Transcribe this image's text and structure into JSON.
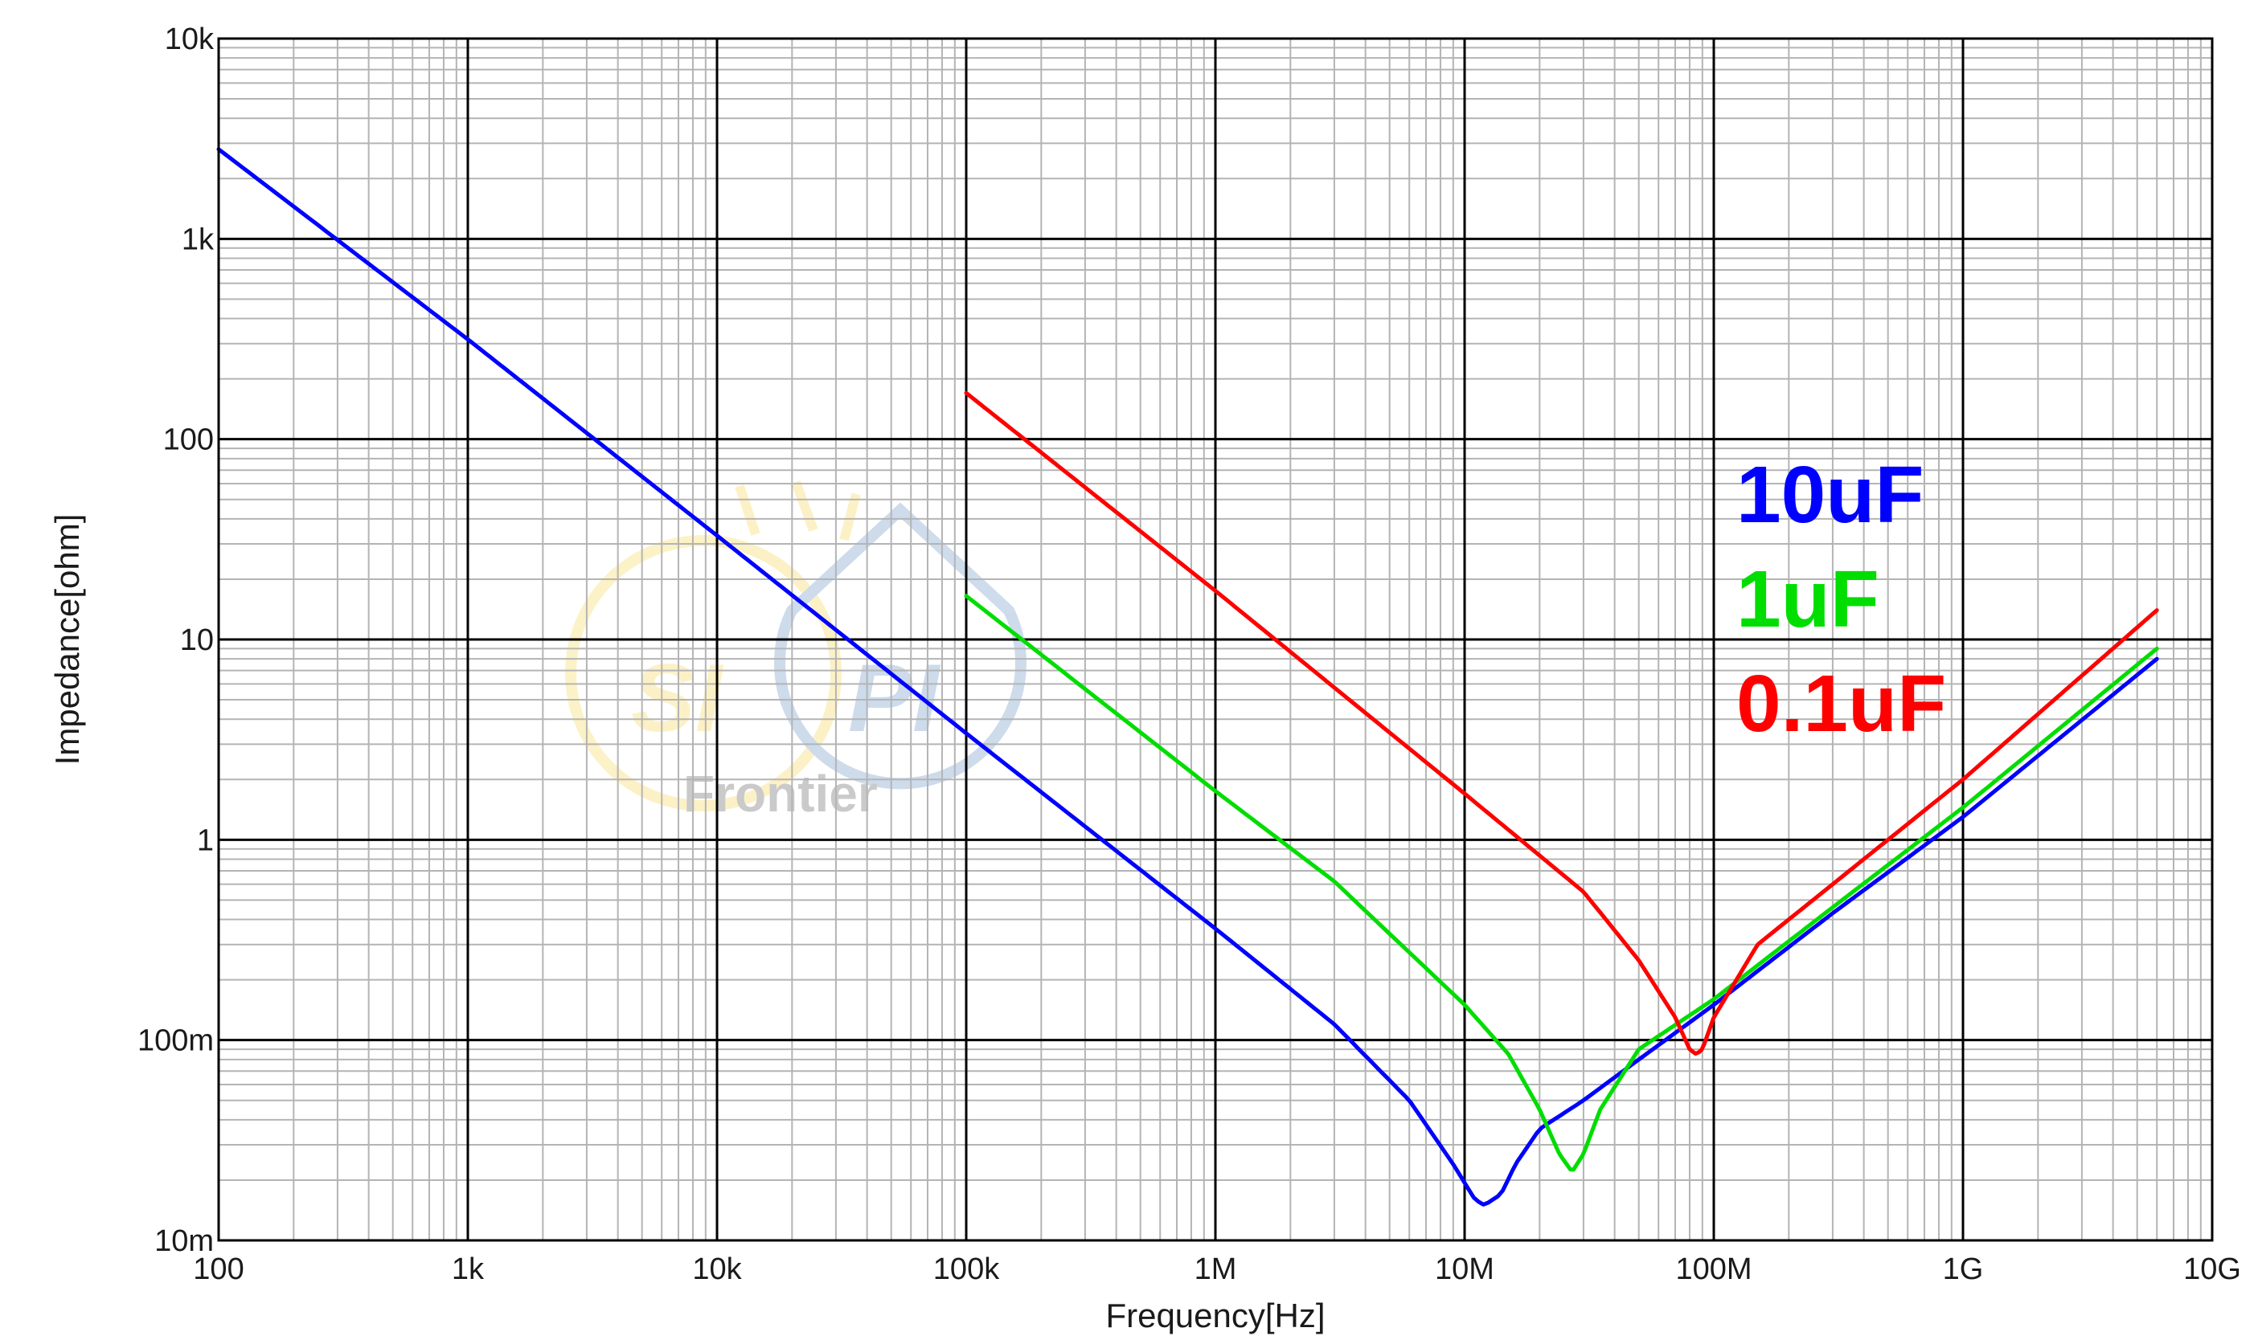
{
  "watermark": {
    "left": "SI",
    "right": "PI",
    "bottom": "Frontier"
  },
  "chart_data": {
    "type": "line",
    "x_scale": "log",
    "y_scale": "log",
    "xlabel": "Frequency[Hz]",
    "ylabel": "Impedance[ohm]",
    "xlim": [
      100,
      10000000000
    ],
    "ylim": [
      0.01,
      10000
    ],
    "x_ticks": [
      {
        "value": 100,
        "label": "100"
      },
      {
        "value": 1000,
        "label": "1k"
      },
      {
        "value": 10000,
        "label": "10k"
      },
      {
        "value": 100000,
        "label": "100k"
      },
      {
        "value": 1000000,
        "label": "1M"
      },
      {
        "value": 10000000,
        "label": "10M"
      },
      {
        "value": 100000000,
        "label": "100M"
      },
      {
        "value": 1000000000,
        "label": "1G"
      },
      {
        "value": 10000000000,
        "label": "10G"
      }
    ],
    "y_ticks": [
      {
        "value": 0.01,
        "label": "10m"
      },
      {
        "value": 0.1,
        "label": "100m"
      },
      {
        "value": 1,
        "label": "1"
      },
      {
        "value": 10,
        "label": "10"
      },
      {
        "value": 100,
        "label": "100"
      },
      {
        "value": 1000,
        "label": "1k"
      },
      {
        "value": 10000,
        "label": "10k"
      }
    ],
    "grid": true,
    "legend_position": "right",
    "series": [
      {
        "name": "10uF",
        "color": "#0000ff",
        "x": [
          100,
          1000,
          10000,
          100000,
          1000000,
          3000000,
          6000000,
          9000000,
          11000000,
          12000000,
          14000000,
          16000000,
          20000000,
          30000000,
          50000000,
          100000000,
          300000000,
          1000000000,
          6000000000
        ],
        "y": [
          2800,
          315,
          33,
          3.4,
          0.36,
          0.12,
          0.05,
          0.024,
          0.016,
          0.015,
          0.017,
          0.024,
          0.036,
          0.05,
          0.08,
          0.15,
          0.43,
          1.3,
          8
        ]
      },
      {
        "name": "1uF",
        "color": "#00dd00",
        "x": [
          100000,
          1000000,
          3000000,
          10000000,
          15000000,
          20000000,
          24000000,
          27000000,
          30000000,
          35000000,
          50000000,
          100000000,
          300000000,
          1000000000,
          6000000000
        ],
        "y": [
          16.5,
          1.75,
          0.62,
          0.15,
          0.085,
          0.045,
          0.027,
          0.022,
          0.027,
          0.045,
          0.09,
          0.16,
          0.46,
          1.45,
          9
        ]
      },
      {
        "name": "0.1uF",
        "color": "#ff0000",
        "x": [
          100000,
          1000000,
          10000000,
          30000000,
          50000000,
          70000000,
          80000000,
          85000000,
          90000000,
          100000000,
          150000000,
          300000000,
          1000000000,
          6000000000
        ],
        "y": [
          170,
          17.5,
          1.7,
          0.55,
          0.25,
          0.13,
          0.09,
          0.085,
          0.09,
          0.13,
          0.3,
          0.6,
          2,
          14
        ]
      }
    ]
  }
}
